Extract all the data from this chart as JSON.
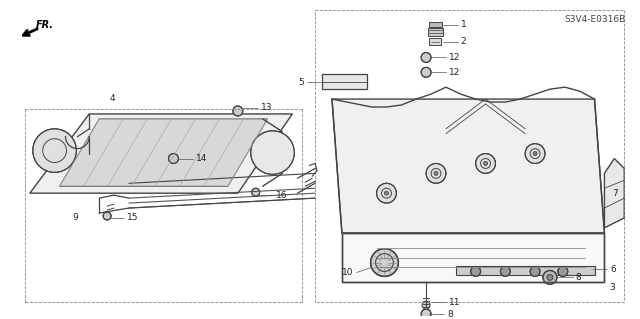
{
  "bg_color": "#ffffff",
  "lc": "#444444",
  "lc_light": "#888888",
  "lc_gray": "#999999",
  "text_color": "#222222",
  "fig_width": 6.4,
  "fig_height": 3.19,
  "dpi": 100,
  "diagram_code": "S3V4-E0316B",
  "fr_label": "FR."
}
